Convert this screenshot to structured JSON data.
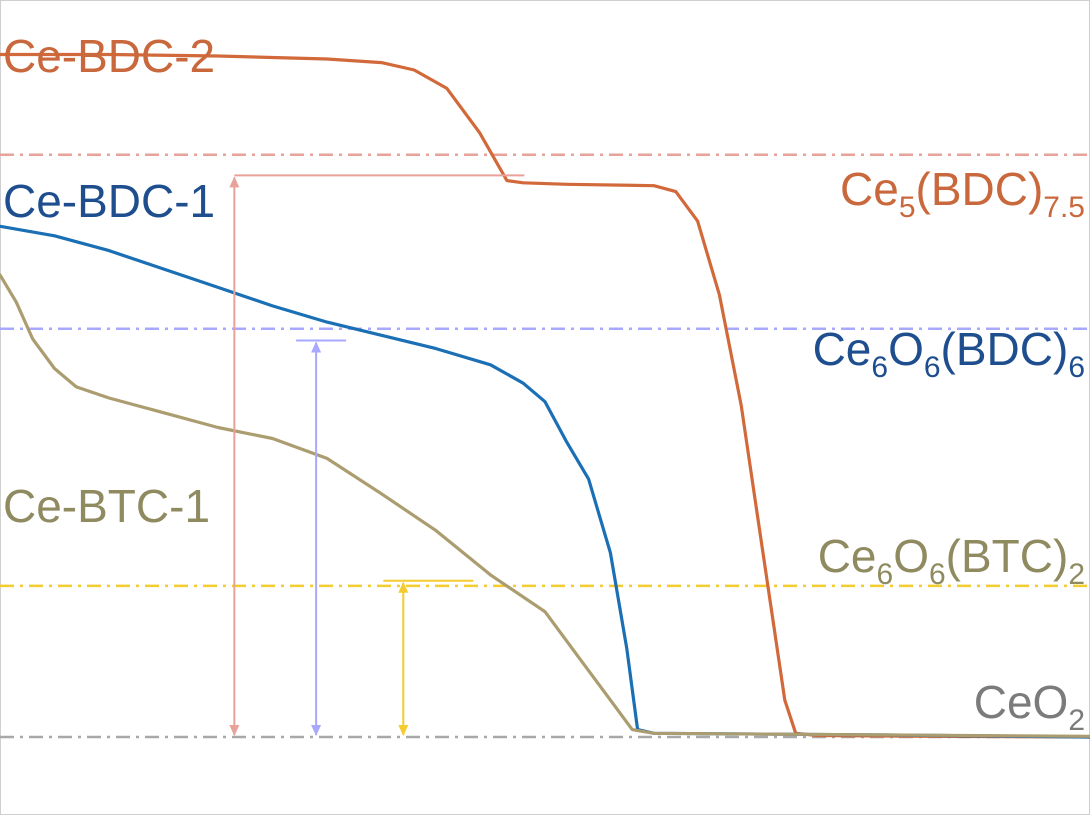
{
  "chart_data": {
    "type": "line",
    "title": "",
    "xlabel": "",
    "ylabel": "",
    "grid": false,
    "series": [
      {
        "name": "Ce-BDC-2",
        "color": "#d2693a",
        "points": [
          [
            0,
            92.6
          ],
          [
            10,
            92.6
          ],
          [
            20,
            92.4
          ],
          [
            30,
            92.0
          ],
          [
            35,
            91.5
          ],
          [
            38,
            90.5
          ],
          [
            41,
            88.0
          ],
          [
            44,
            82.0
          ],
          [
            46.5,
            75.5
          ],
          [
            48,
            75.2
          ],
          [
            52,
            75.0
          ],
          [
            60,
            74.8
          ],
          [
            62,
            74.0
          ],
          [
            64,
            70.0
          ],
          [
            66,
            60.0
          ],
          [
            68,
            45.0
          ],
          [
            69.5,
            30.0
          ],
          [
            71,
            15.0
          ],
          [
            72,
            5.0
          ],
          [
            73,
            0.5
          ],
          [
            75,
            0.2
          ],
          [
            85,
            0.1
          ],
          [
            100,
            0.0
          ]
        ]
      },
      {
        "name": "Ce-BDC-1",
        "color": "#1a6fb5",
        "points": [
          [
            0,
            69.3
          ],
          [
            5,
            68.0
          ],
          [
            10,
            66.0
          ],
          [
            15,
            63.5
          ],
          [
            20,
            61.0
          ],
          [
            25,
            58.5
          ],
          [
            30,
            56.3
          ],
          [
            35,
            54.5
          ],
          [
            40,
            52.7
          ],
          [
            45,
            50.5
          ],
          [
            48,
            48.0
          ],
          [
            50,
            45.5
          ],
          [
            52,
            40.0
          ],
          [
            54,
            35.0
          ],
          [
            56,
            25.0
          ],
          [
            57.5,
            12.0
          ],
          [
            58.5,
            1.0
          ],
          [
            60,
            0.5
          ],
          [
            80,
            0.3
          ],
          [
            100,
            0.0
          ]
        ]
      },
      {
        "name": "Ce-BTC-1",
        "color": "#ab9d6f",
        "points": [
          [
            0,
            62.7
          ],
          [
            1.5,
            59.0
          ],
          [
            3,
            54.0
          ],
          [
            5,
            50.0
          ],
          [
            7,
            47.5
          ],
          [
            10,
            46.0
          ],
          [
            15,
            44.0
          ],
          [
            20,
            42.0
          ],
          [
            25,
            40.5
          ],
          [
            30,
            37.8
          ],
          [
            35,
            33.0
          ],
          [
            40,
            28.0
          ],
          [
            45,
            22.0
          ],
          [
            50,
            17.0
          ],
          [
            53,
            11.0
          ],
          [
            56,
            5.0
          ],
          [
            58,
            1.0
          ],
          [
            60,
            0.5
          ],
          [
            80,
            0.3
          ],
          [
            100,
            0.1
          ]
        ]
      }
    ],
    "reference_lines": [
      {
        "name": "Ce5(BDC)7.5",
        "value": 79.0,
        "color": "#e8a29a",
        "label": {
          "base": "Ce",
          "parts": [
            [
              "5",
              "sub"
            ],
            [
              "(BDC)",
              ""
            ],
            [
              "7.5",
              "sub"
            ]
          ]
        },
        "label_color": "#c9683c"
      },
      {
        "name": "Ce6O6(BDC)6",
        "value": 55.4,
        "color": "#a7a9ff",
        "label": {
          "base": "Ce",
          "parts": [
            [
              "6",
              "sub"
            ],
            [
              "O",
              ""
            ],
            [
              "6",
              "sub"
            ],
            [
              "(BDC)",
              ""
            ],
            [
              "6",
              "sub"
            ]
          ]
        },
        "label_color": "#1f4e8f"
      },
      {
        "name": "Ce6O6(BTC)2",
        "value": 20.5,
        "color": "#f4cc2f",
        "label": {
          "base": "Ce",
          "parts": [
            [
              "6",
              "sub"
            ],
            [
              "O",
              ""
            ],
            [
              "6",
              "sub"
            ],
            [
              "(BTC)",
              ""
            ],
            [
              "2",
              "sub"
            ]
          ]
        },
        "label_color": "#8f8a60"
      },
      {
        "name": "CeO2",
        "value": 0.0,
        "color": "#a8a8a8",
        "label": {
          "base": "CeO",
          "parts": [
            [
              "2",
              "sub"
            ]
          ]
        },
        "label_color": "#7b7b7b"
      }
    ],
    "series_labels": [
      {
        "text": "Ce-BDC-2",
        "color": "#c9683c"
      },
      {
        "text": "Ce-BDC-1",
        "color": "#1f4e8f"
      },
      {
        "text": "Ce-BTC-1",
        "color": "#8f8a60"
      }
    ],
    "annotations": [
      {
        "type": "arrow",
        "color": "#e8a29a",
        "x": 21.5,
        "from": 0.0,
        "to": 76.2
      },
      {
        "type": "arrow",
        "color": "#a7a9ff",
        "x": 29.0,
        "from": 0.0,
        "to": 53.8
      },
      {
        "type": "arrow",
        "color": "#f4cc2f",
        "x": 37.0,
        "from": 0.0,
        "to": 21.2
      }
    ],
    "xlim": [
      0,
      100
    ],
    "ylim": [
      0,
      100
    ]
  }
}
